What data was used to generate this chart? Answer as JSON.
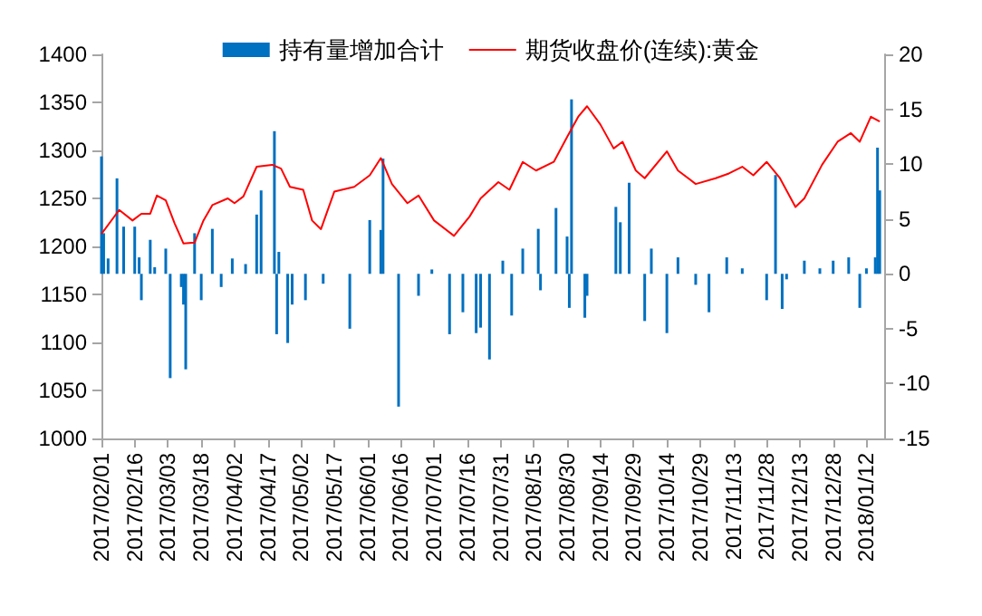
{
  "chart_data": {
    "type": "bar",
    "legend": "top",
    "grid": false,
    "xlim": [
      "2017-02-01",
      "2018-01-20"
    ],
    "xticks": [
      {
        "value": "2017-02-01",
        "label": "2017/02/01"
      },
      {
        "value": "2017-02-16",
        "label": "2017/02/16"
      },
      {
        "value": "2017-03-03",
        "label": "2017/03/03"
      },
      {
        "value": "2017-03-18",
        "label": "2017/03/18"
      },
      {
        "value": "2017-04-02",
        "label": "2017/04/02"
      },
      {
        "value": "2017-04-17",
        "label": "2017/04/17"
      },
      {
        "value": "2017-05-02",
        "label": "2017/05/02"
      },
      {
        "value": "2017-05-17",
        "label": "2017/05/17"
      },
      {
        "value": "2017-06-01",
        "label": "2017/06/01"
      },
      {
        "value": "2017-06-16",
        "label": "2017/06/16"
      },
      {
        "value": "2017-07-01",
        "label": "2017/07/01"
      },
      {
        "value": "2017-07-16",
        "label": "2017/07/16"
      },
      {
        "value": "2017-07-31",
        "label": "2017/07/31"
      },
      {
        "value": "2017-08-15",
        "label": "2017/08/15"
      },
      {
        "value": "2017-08-30",
        "label": "2017/08/30"
      },
      {
        "value": "2017-09-14",
        "label": "2017/09/14"
      },
      {
        "value": "2017-09-29",
        "label": "2017/09/29"
      },
      {
        "value": "2017-10-14",
        "label": "2017/10/14"
      },
      {
        "value": "2017-10-29",
        "label": "2017/10/29"
      },
      {
        "value": "2017-11-13",
        "label": "2017/11/13"
      },
      {
        "value": "2017-11-28",
        "label": "2017/11/28"
      },
      {
        "value": "2017-12-13",
        "label": "2017/12/13"
      },
      {
        "value": "2017-12-28",
        "label": "2017/12/28"
      },
      {
        "value": "2018-01-12",
        "label": "2018/01/12"
      }
    ],
    "ylim": [
      1000,
      1400
    ],
    "yticks": [
      1000,
      1050,
      1100,
      1150,
      1200,
      1250,
      1300,
      1350,
      1400
    ],
    "y2lim": [
      -15,
      20
    ],
    "y2ticks": [
      -15,
      -10,
      -5,
      0,
      5,
      10,
      15,
      20
    ],
    "series": [
      {
        "name": "持有量增加合计",
        "axis": "y2",
        "color": "#0070c0",
        "x": [
          "2017-02-01",
          "2017-02-02",
          "2017-02-04",
          "2017-02-08",
          "2017-02-11",
          "2017-02-16",
          "2017-02-18",
          "2017-02-19",
          "2017-02-23",
          "2017-02-25",
          "2017-03-02",
          "2017-03-04",
          "2017-03-09",
          "2017-03-10",
          "2017-03-11",
          "2017-03-15",
          "2017-03-18",
          "2017-03-23",
          "2017-03-27",
          "2017-04-01",
          "2017-04-07",
          "2017-04-12",
          "2017-04-14",
          "2017-04-20",
          "2017-04-21",
          "2017-04-22",
          "2017-04-26",
          "2017-04-28",
          "2017-05-04",
          "2017-05-12",
          "2017-05-24",
          "2017-06-02",
          "2017-06-07",
          "2017-06-08",
          "2017-06-15",
          "2017-06-24",
          "2017-06-30",
          "2017-07-08",
          "2017-07-14",
          "2017-07-20",
          "2017-07-22",
          "2017-07-26",
          "2017-08-01",
          "2017-08-05",
          "2017-08-10",
          "2017-08-17",
          "2017-08-18",
          "2017-08-25",
          "2017-08-30",
          "2017-08-31",
          "2017-09-01",
          "2017-09-07",
          "2017-09-08",
          "2017-09-21",
          "2017-09-23",
          "2017-09-27",
          "2017-10-04",
          "2017-10-07",
          "2017-10-14",
          "2017-10-19",
          "2017-10-27",
          "2017-11-02",
          "2017-11-10",
          "2017-11-17",
          "2017-11-28",
          "2017-12-02",
          "2017-12-05",
          "2017-12-07",
          "2017-12-15",
          "2017-12-22",
          "2017-12-28",
          "2018-01-04",
          "2018-01-09",
          "2018-01-12",
          "2018-01-16",
          "2018-01-17",
          "2018-01-18"
        ],
        "values": [
          10.7,
          3.7,
          1.4,
          8.7,
          4.3,
          4.3,
          1.5,
          -2.4,
          3.1,
          0.6,
          2.3,
          -9.5,
          -1.2,
          -2.8,
          -8.7,
          3.7,
          -2.4,
          4.1,
          -1.2,
          1.4,
          0.9,
          5.4,
          7.6,
          13,
          -5.5,
          2,
          -6.3,
          -2.8,
          -2.4,
          -0.9,
          -5,
          4.9,
          4,
          10.5,
          -12.1,
          -2,
          0.4,
          -5.5,
          -3.5,
          -5.4,
          -4.9,
          -7.8,
          1.2,
          -3.8,
          2.3,
          4.1,
          -1.5,
          6,
          3.4,
          -3.1,
          15.9,
          -4,
          -2,
          6.1,
          4.7,
          8.3,
          -4.3,
          2.3,
          -5.4,
          1.5,
          -1,
          -3.5,
          1.5,
          0.5,
          -2.4,
          9,
          -3.2,
          -0.5,
          1.2,
          0.5,
          1.2,
          1.5,
          -3.1,
          0.5,
          1.5,
          11.5,
          7.6
        ]
      },
      {
        "name": "期货收盘价(连续):黄金",
        "type": "line",
        "color": "#ff0000",
        "x": [
          "2017-02-01",
          "2017-02-09",
          "2017-02-15",
          "2017-02-19",
          "2017-02-23",
          "2017-02-26",
          "2017-03-02",
          "2017-03-06",
          "2017-03-10",
          "2017-03-15",
          "2017-03-19",
          "2017-03-23",
          "2017-03-30",
          "2017-04-02",
          "2017-04-06",
          "2017-04-12",
          "2017-04-19",
          "2017-04-23",
          "2017-04-27",
          "2017-05-03",
          "2017-05-07",
          "2017-05-11",
          "2017-05-17",
          "2017-05-26",
          "2017-06-02",
          "2017-06-07",
          "2017-06-12",
          "2017-06-19",
          "2017-06-24",
          "2017-07-01",
          "2017-07-10",
          "2017-07-17",
          "2017-07-22",
          "2017-07-30",
          "2017-08-04",
          "2017-08-10",
          "2017-08-16",
          "2017-08-24",
          "2017-08-30",
          "2017-09-04",
          "2017-09-08",
          "2017-09-14",
          "2017-09-20",
          "2017-09-24",
          "2017-09-30",
          "2017-10-04",
          "2017-10-14",
          "2017-10-19",
          "2017-10-27",
          "2017-11-05",
          "2017-11-11",
          "2017-11-17",
          "2017-11-22",
          "2017-11-28",
          "2017-12-04",
          "2017-12-11",
          "2017-12-15",
          "2017-12-23",
          "2017-12-30",
          "2018-01-05",
          "2018-01-09",
          "2018-01-14",
          "2018-01-18"
        ],
        "values": [
          1213,
          1238,
          1227,
          1234,
          1234,
          1253,
          1248,
          1224,
          1203,
          1204,
          1227,
          1243,
          1250,
          1245,
          1252,
          1283,
          1285,
          1281,
          1262,
          1259,
          1227,
          1218,
          1257,
          1262,
          1274,
          1292,
          1265,
          1245,
          1253,
          1227,
          1211,
          1231,
          1250,
          1267,
          1259,
          1288,
          1279,
          1288,
          1314,
          1335,
          1346,
          1327,
          1302,
          1309,
          1279,
          1271,
          1299,
          1279,
          1265,
          1271,
          1276,
          1283,
          1274,
          1288,
          1271,
          1241,
          1250,
          1285,
          1309,
          1318,
          1309,
          1335,
          1330
        ]
      }
    ]
  }
}
